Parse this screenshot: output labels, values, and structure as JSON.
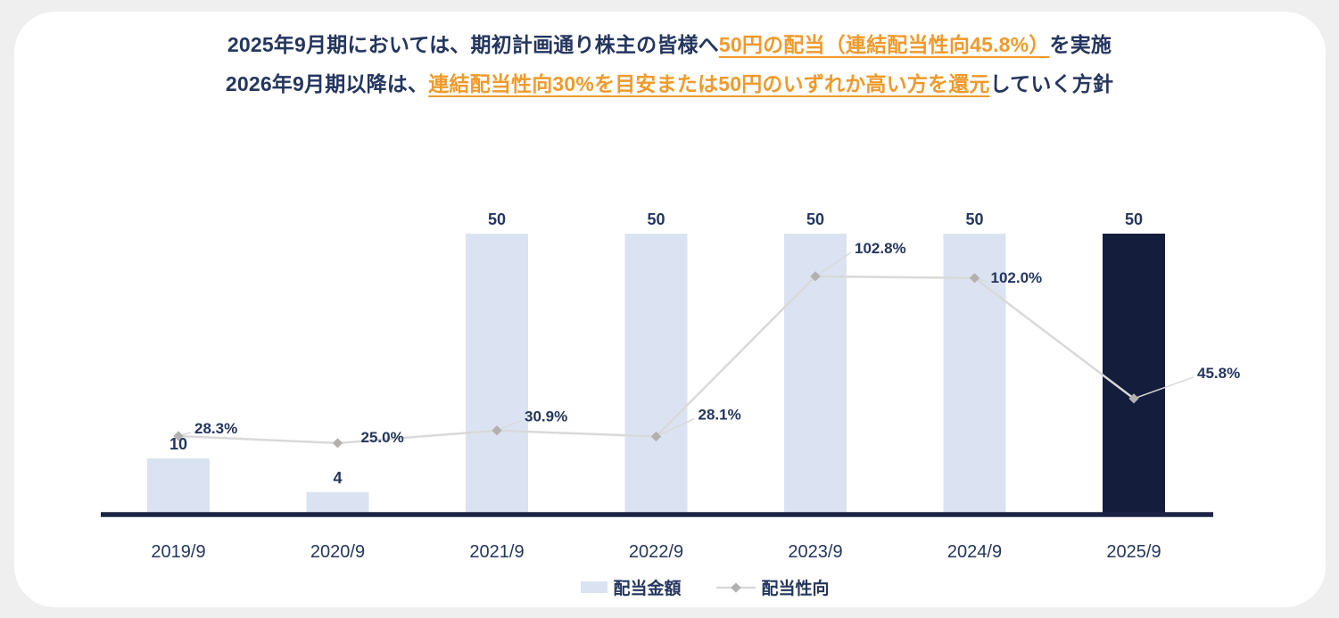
{
  "header": {
    "line1": {
      "prefix": "2025年9月期においては、期初計画通り株主の皆様へ",
      "highlight": "50円の配当（連結配当性向45.8%）",
      "suffix": "を実施"
    },
    "line2": {
      "prefix": "2026年9月期以降は、",
      "highlight": "連結配当性向30%を目安または50円のいずれか高い方を還元",
      "suffix": "していく方針"
    }
  },
  "chart_data": {
    "type": "bar",
    "subtype": "combo-bar-line",
    "categories": [
      "2019/9",
      "2020/9",
      "2021/9",
      "2022/9",
      "2023/9",
      "2024/9",
      "2025/9"
    ],
    "series": [
      {
        "name": "配当金額",
        "type": "bar",
        "unit": "円",
        "values": [
          10,
          4,
          50,
          50,
          50,
          50,
          50
        ],
        "data_labels": [
          "10",
          "4",
          "50",
          "50",
          "50",
          "50",
          "50"
        ]
      },
      {
        "name": "配当性向",
        "type": "line",
        "unit": "%",
        "values": [
          28.3,
          25.0,
          30.9,
          28.1,
          102.8,
          102.0,
          45.8
        ],
        "data_labels": [
          "28.3%",
          "25.0%",
          "30.9%",
          "28.1%",
          "102.8%",
          "102.0%",
          "45.8%"
        ]
      }
    ],
    "highlight_category_index": 6,
    "legend_position": "bottom",
    "grid": false,
    "value_axes_hidden": true
  },
  "legend": {
    "bar_label": "配当金額",
    "line_label": "配当性向"
  },
  "colors": {
    "bar_default": "#dbe3f2",
    "bar_highlight": "#141d3b",
    "line": "#d9d9d9",
    "marker": "#b3b0b0",
    "axis_line": "#1b2444",
    "text_navy": "#24365f",
    "accent_orange": "#f09a2b",
    "card_bg": "#ffffff",
    "page_bg": "#efefef"
  }
}
